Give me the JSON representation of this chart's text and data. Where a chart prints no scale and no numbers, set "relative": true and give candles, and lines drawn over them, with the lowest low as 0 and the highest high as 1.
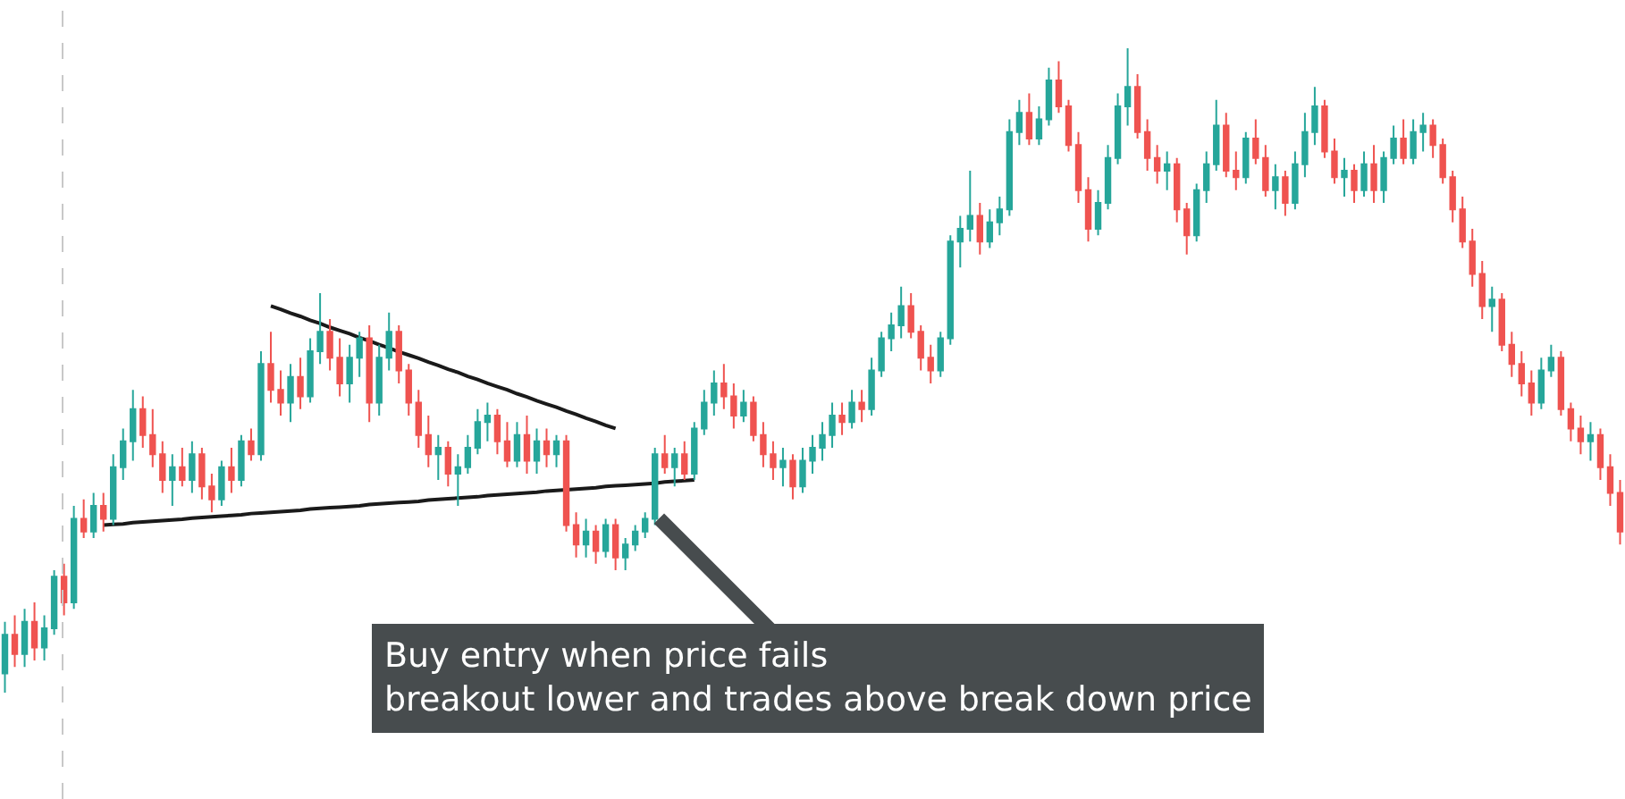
{
  "chart_data": {
    "type": "candlestick",
    "relative": true,
    "categories": [
      null,
      null,
      null,
      null,
      null,
      null,
      null,
      null,
      null,
      null,
      null,
      null,
      null,
      null,
      null,
      null,
      null,
      null,
      null,
      null,
      null,
      null,
      null,
      null,
      null,
      null,
      null,
      null,
      null,
      null,
      null,
      null,
      null,
      null,
      null,
      null,
      null,
      null,
      null,
      null,
      null,
      null,
      null,
      null,
      null,
      null,
      null,
      null,
      null,
      null,
      null,
      null,
      null,
      null,
      null,
      null,
      null,
      null,
      null,
      null,
      null,
      null,
      null,
      null,
      null,
      null,
      null,
      null,
      null,
      null,
      null,
      null,
      null,
      null,
      null,
      null,
      null,
      null,
      null,
      null,
      null,
      null,
      null,
      null,
      null,
      null,
      null,
      null,
      null,
      null,
      null,
      null,
      null,
      null,
      null,
      null,
      null,
      null,
      null,
      null,
      null,
      null,
      null,
      null,
      null,
      null,
      null,
      null,
      null,
      null,
      null,
      null,
      null,
      null,
      null,
      null,
      null,
      null,
      null,
      null,
      null,
      null,
      null,
      null,
      null,
      null,
      null,
      null,
      null,
      null,
      null,
      null,
      null,
      null,
      null,
      null,
      null,
      null,
      null,
      null,
      null,
      null,
      null,
      null,
      null,
      null,
      null,
      null,
      null,
      null,
      null,
      null,
      null,
      null,
      null,
      null,
      null,
      null,
      null,
      null,
      null,
      null,
      null,
      null,
      null
    ],
    "ohlc": [
      [
        0.03,
        0.11,
        0.0,
        0.09
      ],
      [
        0.09,
        0.12,
        0.04,
        0.06
      ],
      [
        0.06,
        0.13,
        0.04,
        0.11
      ],
      [
        0.11,
        0.14,
        0.05,
        0.07
      ],
      [
        0.07,
        0.12,
        0.05,
        0.1
      ],
      [
        0.1,
        0.19,
        0.09,
        0.18
      ],
      [
        0.18,
        0.2,
        0.12,
        0.14
      ],
      [
        0.14,
        0.29,
        0.13,
        0.27
      ],
      [
        0.27,
        0.3,
        0.24,
        0.25
      ],
      [
        0.25,
        0.31,
        0.24,
        0.29
      ],
      [
        0.29,
        0.31,
        0.25,
        0.27
      ],
      [
        0.27,
        0.37,
        0.26,
        0.35
      ],
      [
        0.35,
        0.41,
        0.33,
        0.39
      ],
      [
        0.39,
        0.47,
        0.36,
        0.44
      ],
      [
        0.44,
        0.46,
        0.38,
        0.4
      ],
      [
        0.4,
        0.44,
        0.35,
        0.37
      ],
      [
        0.37,
        0.39,
        0.31,
        0.33
      ],
      [
        0.33,
        0.37,
        0.29,
        0.35
      ],
      [
        0.35,
        0.38,
        0.32,
        0.33
      ],
      [
        0.33,
        0.39,
        0.31,
        0.37
      ],
      [
        0.37,
        0.38,
        0.3,
        0.32
      ],
      [
        0.32,
        0.34,
        0.28,
        0.3
      ],
      [
        0.3,
        0.36,
        0.29,
        0.35
      ],
      [
        0.35,
        0.38,
        0.31,
        0.33
      ],
      [
        0.33,
        0.4,
        0.32,
        0.39
      ],
      [
        0.39,
        0.41,
        0.36,
        0.37
      ],
      [
        0.37,
        0.53,
        0.36,
        0.51
      ],
      [
        0.51,
        0.56,
        0.45,
        0.47
      ],
      [
        0.47,
        0.5,
        0.43,
        0.45
      ],
      [
        0.45,
        0.51,
        0.42,
        0.49
      ],
      [
        0.49,
        0.52,
        0.44,
        0.46
      ],
      [
        0.46,
        0.55,
        0.45,
        0.53
      ],
      [
        0.53,
        0.62,
        0.51,
        0.56
      ],
      [
        0.56,
        0.58,
        0.5,
        0.52
      ],
      [
        0.52,
        0.55,
        0.46,
        0.48
      ],
      [
        0.48,
        0.54,
        0.45,
        0.52
      ],
      [
        0.52,
        0.56,
        0.49,
        0.55
      ],
      [
        0.55,
        0.57,
        0.42,
        0.45
      ],
      [
        0.45,
        0.54,
        0.43,
        0.52
      ],
      [
        0.52,
        0.59,
        0.5,
        0.56
      ],
      [
        0.56,
        0.57,
        0.48,
        0.5
      ],
      [
        0.5,
        0.51,
        0.43,
        0.45
      ],
      [
        0.45,
        0.47,
        0.38,
        0.4
      ],
      [
        0.4,
        0.43,
        0.35,
        0.37
      ],
      [
        0.37,
        0.4,
        0.33,
        0.38
      ],
      [
        0.38,
        0.39,
        0.32,
        0.34
      ],
      [
        0.34,
        0.37,
        0.29,
        0.35
      ],
      [
        0.35,
        0.4,
        0.34,
        0.38
      ],
      [
        0.38,
        0.44,
        0.37,
        0.42
      ],
      [
        0.42,
        0.45,
        0.39,
        0.43
      ],
      [
        0.43,
        0.44,
        0.37,
        0.39
      ],
      [
        0.39,
        0.42,
        0.35,
        0.36
      ],
      [
        0.36,
        0.42,
        0.35,
        0.4
      ],
      [
        0.4,
        0.43,
        0.34,
        0.36
      ],
      [
        0.36,
        0.41,
        0.34,
        0.39
      ],
      [
        0.39,
        0.41,
        0.35,
        0.37
      ],
      [
        0.37,
        0.4,
        0.35,
        0.39
      ],
      [
        0.39,
        0.4,
        0.25,
        0.26
      ],
      [
        0.26,
        0.28,
        0.21,
        0.23
      ],
      [
        0.23,
        0.27,
        0.21,
        0.25
      ],
      [
        0.25,
        0.26,
        0.2,
        0.22
      ],
      [
        0.22,
        0.27,
        0.21,
        0.26
      ],
      [
        0.26,
        0.27,
        0.19,
        0.21
      ],
      [
        0.21,
        0.24,
        0.19,
        0.23
      ],
      [
        0.23,
        0.26,
        0.22,
        0.25
      ],
      [
        0.25,
        0.28,
        0.24,
        0.27
      ],
      [
        0.27,
        0.38,
        0.26,
        0.37
      ],
      [
        0.37,
        0.4,
        0.34,
        0.35
      ],
      [
        0.35,
        0.38,
        0.32,
        0.37
      ],
      [
        0.37,
        0.39,
        0.33,
        0.34
      ],
      [
        0.34,
        0.42,
        0.33,
        0.41
      ],
      [
        0.41,
        0.47,
        0.4,
        0.45
      ],
      [
        0.45,
        0.5,
        0.43,
        0.48
      ],
      [
        0.48,
        0.51,
        0.44,
        0.46
      ],
      [
        0.46,
        0.48,
        0.41,
        0.43
      ],
      [
        0.43,
        0.47,
        0.42,
        0.45
      ],
      [
        0.45,
        0.46,
        0.39,
        0.4
      ],
      [
        0.4,
        0.42,
        0.35,
        0.37
      ],
      [
        0.37,
        0.39,
        0.33,
        0.35
      ],
      [
        0.35,
        0.38,
        0.32,
        0.36
      ],
      [
        0.36,
        0.37,
        0.3,
        0.32
      ],
      [
        0.32,
        0.38,
        0.31,
        0.36
      ],
      [
        0.36,
        0.4,
        0.34,
        0.38
      ],
      [
        0.38,
        0.42,
        0.36,
        0.4
      ],
      [
        0.4,
        0.45,
        0.38,
        0.43
      ],
      [
        0.43,
        0.45,
        0.4,
        0.42
      ],
      [
        0.42,
        0.47,
        0.41,
        0.45
      ],
      [
        0.45,
        0.47,
        0.42,
        0.44
      ],
      [
        0.44,
        0.52,
        0.43,
        0.5
      ],
      [
        0.5,
        0.56,
        0.49,
        0.55
      ],
      [
        0.55,
        0.59,
        0.53,
        0.57
      ],
      [
        0.57,
        0.63,
        0.55,
        0.6
      ],
      [
        0.6,
        0.62,
        0.55,
        0.56
      ],
      [
        0.56,
        0.57,
        0.5,
        0.52
      ],
      [
        0.52,
        0.54,
        0.48,
        0.5
      ],
      [
        0.5,
        0.56,
        0.49,
        0.55
      ],
      [
        0.55,
        0.71,
        0.54,
        0.7
      ],
      [
        0.7,
        0.74,
        0.66,
        0.72
      ],
      [
        0.72,
        0.81,
        0.7,
        0.74
      ],
      [
        0.74,
        0.76,
        0.68,
        0.7
      ],
      [
        0.7,
        0.75,
        0.69,
        0.73
      ],
      [
        0.73,
        0.77,
        0.71,
        0.75
      ],
      [
        0.75,
        0.89,
        0.74,
        0.87
      ],
      [
        0.87,
        0.92,
        0.85,
        0.9
      ],
      [
        0.9,
        0.93,
        0.85,
        0.86
      ],
      [
        0.86,
        0.91,
        0.85,
        0.89
      ],
      [
        0.89,
        0.97,
        0.88,
        0.95
      ],
      [
        0.95,
        0.98,
        0.9,
        0.91
      ],
      [
        0.91,
        0.92,
        0.84,
        0.85
      ],
      [
        0.85,
        0.87,
        0.76,
        0.78
      ],
      [
        0.78,
        0.8,
        0.7,
        0.72
      ],
      [
        0.72,
        0.78,
        0.71,
        0.76
      ],
      [
        0.76,
        0.85,
        0.75,
        0.83
      ],
      [
        0.83,
        0.93,
        0.82,
        0.91
      ],
      [
        0.91,
        1.0,
        0.88,
        0.94
      ],
      [
        0.94,
        0.96,
        0.86,
        0.87
      ],
      [
        0.87,
        0.89,
        0.81,
        0.83
      ],
      [
        0.83,
        0.85,
        0.79,
        0.81
      ],
      [
        0.81,
        0.84,
        0.78,
        0.82
      ],
      [
        0.82,
        0.83,
        0.73,
        0.75
      ],
      [
        0.75,
        0.76,
        0.68,
        0.71
      ],
      [
        0.71,
        0.79,
        0.7,
        0.78
      ],
      [
        0.78,
        0.84,
        0.76,
        0.82
      ],
      [
        0.82,
        0.92,
        0.81,
        0.88
      ],
      [
        0.88,
        0.9,
        0.8,
        0.81
      ],
      [
        0.81,
        0.84,
        0.78,
        0.8
      ],
      [
        0.8,
        0.87,
        0.79,
        0.86
      ],
      [
        0.86,
        0.89,
        0.82,
        0.83
      ],
      [
        0.83,
        0.85,
        0.77,
        0.78
      ],
      [
        0.78,
        0.82,
        0.75,
        0.8
      ],
      [
        0.8,
        0.81,
        0.74,
        0.76
      ],
      [
        0.76,
        0.84,
        0.75,
        0.82
      ],
      [
        0.82,
        0.9,
        0.8,
        0.87
      ],
      [
        0.87,
        0.94,
        0.85,
        0.91
      ],
      [
        0.91,
        0.92,
        0.83,
        0.84
      ],
      [
        0.84,
        0.86,
        0.79,
        0.8
      ],
      [
        0.8,
        0.83,
        0.77,
        0.81
      ],
      [
        0.81,
        0.82,
        0.76,
        0.78
      ],
      [
        0.78,
        0.84,
        0.77,
        0.82
      ],
      [
        0.82,
        0.85,
        0.76,
        0.78
      ],
      [
        0.78,
        0.84,
        0.76,
        0.83
      ],
      [
        0.83,
        0.88,
        0.82,
        0.86
      ],
      [
        0.86,
        0.89,
        0.82,
        0.83
      ],
      [
        0.83,
        0.89,
        0.82,
        0.87
      ],
      [
        0.87,
        0.9,
        0.84,
        0.88
      ],
      [
        0.88,
        0.89,
        0.83,
        0.85
      ],
      [
        0.85,
        0.86,
        0.79,
        0.8
      ],
      [
        0.8,
        0.81,
        0.73,
        0.75
      ],
      [
        0.75,
        0.77,
        0.69,
        0.7
      ],
      [
        0.7,
        0.72,
        0.63,
        0.65
      ],
      [
        0.65,
        0.67,
        0.58,
        0.6
      ],
      [
        0.6,
        0.63,
        0.56,
        0.61
      ],
      [
        0.61,
        0.62,
        0.53,
        0.54
      ],
      [
        0.54,
        0.56,
        0.49,
        0.51
      ],
      [
        0.51,
        0.53,
        0.46,
        0.48
      ],
      [
        0.48,
        0.5,
        0.43,
        0.45
      ],
      [
        0.45,
        0.52,
        0.44,
        0.5
      ],
      [
        0.5,
        0.54,
        0.49,
        0.52
      ],
      [
        0.52,
        0.53,
        0.43,
        0.44
      ],
      [
        0.44,
        0.45,
        0.39,
        0.41
      ],
      [
        0.41,
        0.43,
        0.37,
        0.39
      ],
      [
        0.39,
        0.42,
        0.36,
        0.4
      ],
      [
        0.4,
        0.41,
        0.33,
        0.35
      ],
      [
        0.35,
        0.37,
        0.29,
        0.31
      ],
      [
        0.31,
        0.33,
        0.23,
        0.25
      ]
    ],
    "colors": [
      "#26a69a",
      "#ef5350",
      "#26a69a",
      "#ef5350",
      "#26a69a",
      "#26a69a",
      "#ef5350",
      "#26a69a",
      "#ef5350",
      "#26a69a",
      "#ef5350",
      "#26a69a",
      "#26a69a",
      "#26a69a",
      "#ef5350",
      "#ef5350",
      "#ef5350",
      "#26a69a",
      "#ef5350",
      "#26a69a",
      "#ef5350",
      "#ef5350",
      "#26a69a",
      "#ef5350",
      "#26a69a",
      "#ef5350",
      "#26a69a",
      "#ef5350",
      "#ef5350",
      "#26a69a",
      "#ef5350",
      "#26a69a",
      "#26a69a",
      "#ef5350",
      "#ef5350",
      "#26a69a",
      "#26a69a",
      "#ef5350",
      "#26a69a",
      "#26a69a",
      "#ef5350",
      "#ef5350",
      "#ef5350",
      "#ef5350",
      "#26a69a",
      "#ef5350",
      "#26a69a",
      "#26a69a",
      "#26a69a",
      "#26a69a",
      "#ef5350",
      "#ef5350",
      "#26a69a",
      "#ef5350",
      "#26a69a",
      "#ef5350",
      "#26a69a",
      "#ef5350",
      "#ef5350",
      "#26a69a",
      "#ef5350",
      "#26a69a",
      "#ef5350",
      "#26a69a",
      "#26a69a",
      "#26a69a",
      "#26a69a",
      "#ef5350",
      "#26a69a",
      "#ef5350",
      "#26a69a",
      "#26a69a",
      "#26a69a",
      "#ef5350",
      "#ef5350",
      "#26a69a",
      "#ef5350",
      "#ef5350",
      "#ef5350",
      "#26a69a",
      "#ef5350",
      "#26a69a",
      "#26a69a",
      "#26a69a",
      "#26a69a",
      "#ef5350",
      "#26a69a",
      "#ef5350",
      "#26a69a",
      "#26a69a",
      "#26a69a",
      "#26a69a",
      "#ef5350",
      "#ef5350",
      "#ef5350",
      "#26a69a",
      "#26a69a",
      "#26a69a",
      "#26a69a",
      "#ef5350",
      "#26a69a",
      "#26a69a",
      "#26a69a",
      "#26a69a",
      "#ef5350",
      "#26a69a",
      "#26a69a",
      "#ef5350",
      "#ef5350",
      "#ef5350",
      "#ef5350",
      "#26a69a",
      "#26a69a",
      "#26a69a",
      "#26a69a",
      "#ef5350",
      "#ef5350",
      "#ef5350",
      "#26a69a",
      "#ef5350",
      "#ef5350",
      "#26a69a",
      "#26a69a",
      "#26a69a",
      "#ef5350",
      "#ef5350",
      "#26a69a",
      "#ef5350",
      "#ef5350",
      "#26a69a",
      "#ef5350",
      "#26a69a",
      "#26a69a",
      "#26a69a",
      "#ef5350",
      "#ef5350",
      "#26a69a",
      "#ef5350",
      "#26a69a",
      "#ef5350",
      "#26a69a",
      "#26a69a",
      "#ef5350",
      "#26a69a",
      "#26a69a",
      "#ef5350",
      "#ef5350",
      "#ef5350",
      "#ef5350",
      "#ef5350",
      "#ef5350",
      "#26a69a",
      "#ef5350",
      "#ef5350",
      "#ef5350",
      "#ef5350",
      "#26a69a",
      "#26a69a",
      "#ef5350",
      "#ef5350",
      "#ef5350",
      "#26a69a",
      "#ef5350",
      "#ef5350",
      "#ef5350"
    ],
    "series": [
      {
        "type": "line",
        "color": "#1a1a1a",
        "values": [
          null,
          null,
          null,
          null,
          null,
          null,
          null,
          null,
          null,
          null,
          null,
          null,
          null,
          null,
          null,
          null,
          null,
          null,
          null,
          null,
          null,
          null,
          null,
          null,
          null,
          null,
          null,
          0.6,
          0.595,
          0.589,
          0.584,
          0.578,
          0.573,
          0.567,
          0.562,
          0.557,
          0.551,
          0.546,
          0.54,
          0.535,
          0.529,
          0.524,
          0.519,
          0.513,
          0.508,
          0.502,
          0.497,
          0.491,
          0.486,
          0.48,
          0.475,
          0.47,
          0.464,
          0.459,
          0.453,
          0.448,
          0.443,
          0.437,
          0.432,
          0.426,
          0.421,
          0.415,
          0.41,
          null,
          null,
          null,
          null,
          null,
          null,
          null,
          null,
          null,
          null,
          null,
          null,
          null,
          null,
          null,
          null,
          null,
          null,
          null,
          null,
          null,
          null,
          null,
          null,
          null,
          null,
          null,
          null,
          null,
          null,
          null,
          null,
          null,
          null,
          null,
          null,
          null,
          null,
          null,
          null,
          null,
          null,
          null,
          null,
          null,
          null,
          null,
          null,
          null,
          null,
          null,
          null,
          null,
          null,
          null,
          null,
          null,
          null,
          null,
          null,
          null,
          null,
          null,
          null,
          null,
          null,
          null,
          null,
          null,
          null,
          null,
          null,
          null,
          null,
          null,
          null,
          null,
          null,
          null,
          null,
          null,
          null,
          null,
          null,
          null,
          null,
          null,
          null,
          null,
          null,
          null,
          null,
          null,
          null,
          null,
          null,
          null,
          null,
          null,
          null,
          null,
          null
        ]
      },
      {
        "type": "line",
        "color": "#1a1a1a",
        "values": [
          null,
          null,
          null,
          null,
          null,
          null,
          null,
          null,
          null,
          null,
          0.26,
          0.261,
          0.262,
          0.264,
          0.265,
          0.266,
          0.267,
          0.268,
          0.269,
          0.271,
          0.272,
          0.273,
          0.274,
          0.275,
          0.276,
          0.278,
          0.279,
          0.28,
          0.281,
          0.282,
          0.283,
          0.285,
          0.286,
          0.287,
          0.288,
          0.289,
          0.29,
          0.292,
          0.293,
          0.294,
          0.295,
          0.296,
          0.297,
          0.299,
          0.3,
          0.301,
          0.302,
          0.303,
          0.304,
          0.306,
          0.307,
          0.308,
          0.309,
          0.31,
          0.311,
          0.313,
          0.314,
          0.315,
          0.316,
          0.317,
          0.318,
          0.32,
          0.321,
          0.322,
          0.323,
          0.324,
          0.325,
          0.327,
          0.328,
          0.329,
          0.33,
          null,
          null,
          null,
          null,
          null,
          null,
          null,
          null,
          null,
          null,
          null,
          null,
          null,
          null,
          null,
          null,
          null,
          null,
          null,
          null,
          null,
          null,
          null,
          null,
          null,
          null,
          null,
          null,
          null,
          null,
          null,
          null,
          null,
          null,
          null,
          null,
          null,
          null,
          null,
          null,
          null,
          null,
          null,
          null,
          null,
          null,
          null,
          null,
          null,
          null,
          null,
          null,
          null,
          null,
          null,
          null,
          null,
          null,
          null,
          null,
          null,
          null,
          null,
          null,
          null,
          null,
          null,
          null,
          null,
          null,
          null,
          null,
          null,
          null,
          null,
          null,
          null,
          null,
          null,
          null,
          null,
          null,
          null,
          null,
          null,
          null,
          null,
          null,
          null,
          null,
          null,
          null,
          null,
          null
        ]
      }
    ],
    "annotations": [
      "Buy entry when price fails\nbreakout lower and trades above break down price"
    ]
  }
}
